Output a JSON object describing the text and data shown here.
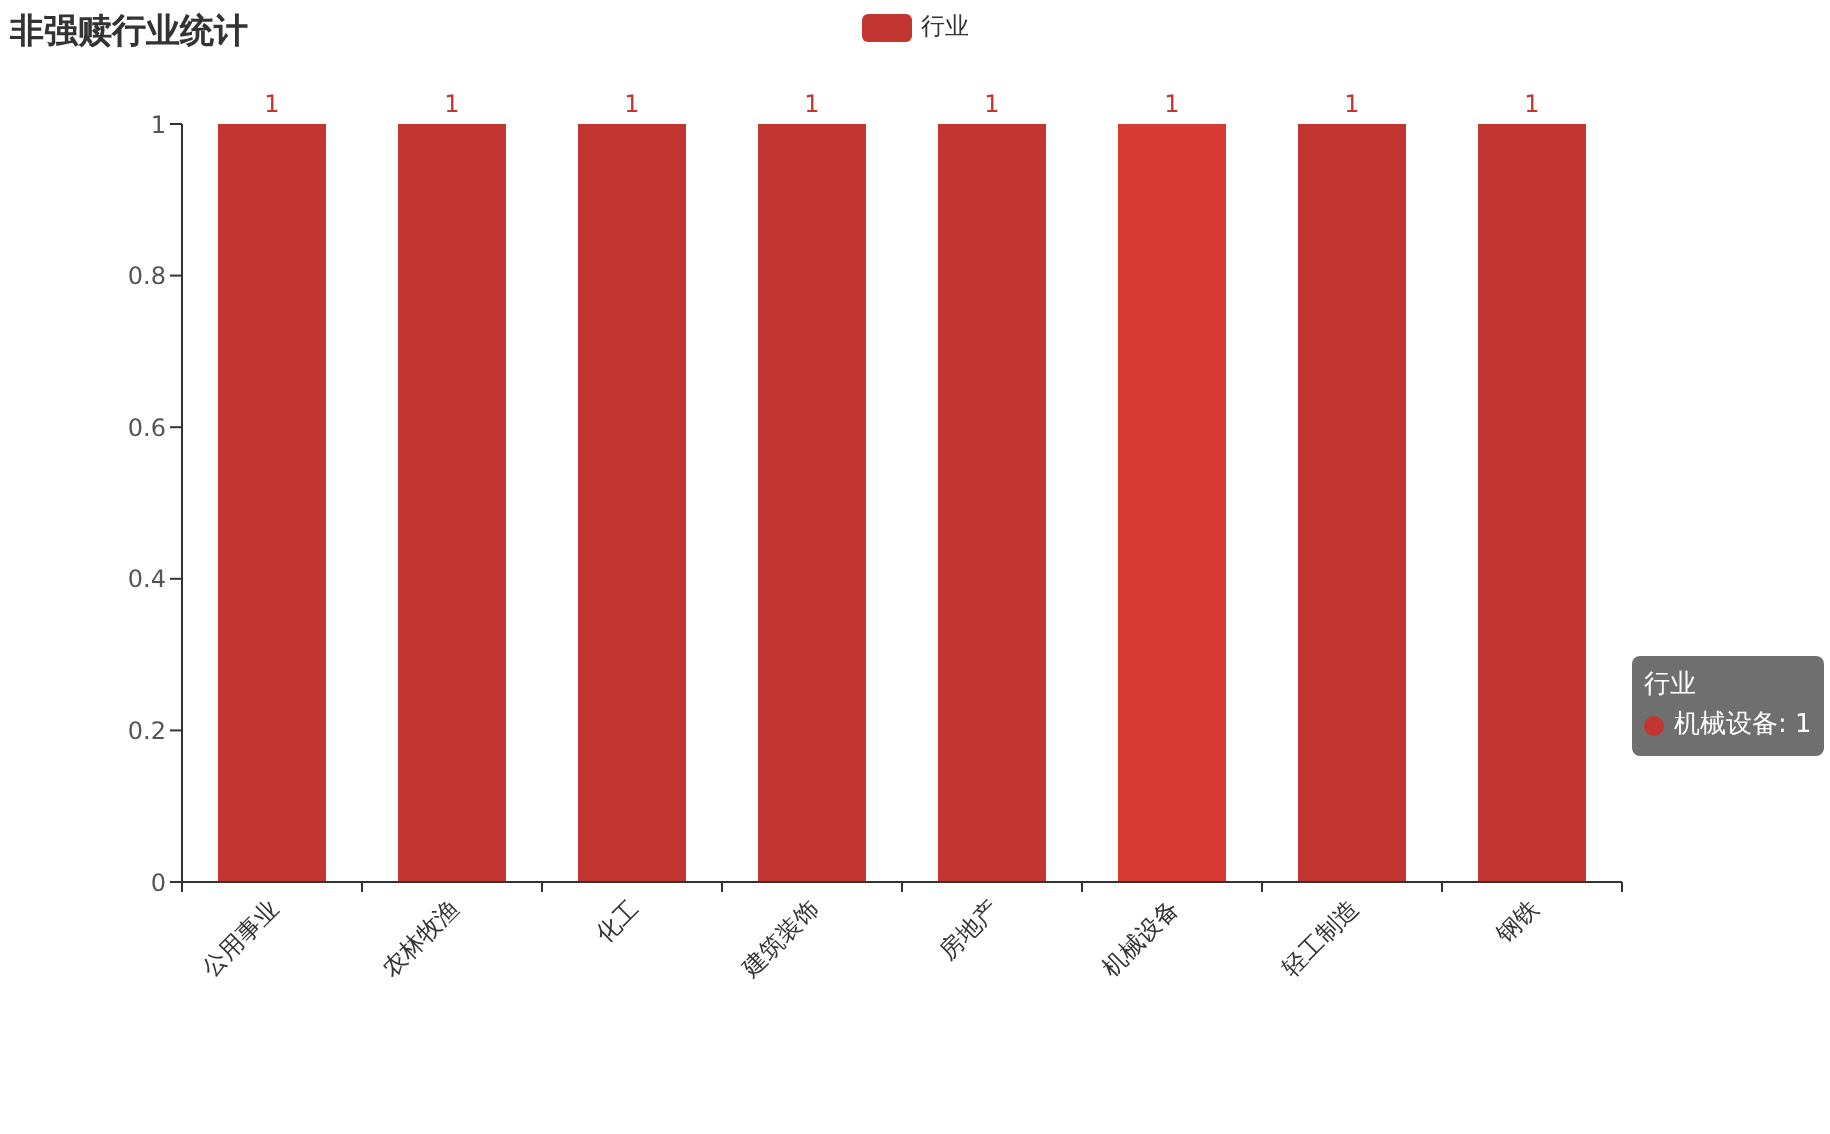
{
  "chart_data": {
    "type": "bar",
    "title": "非强赎行业统计",
    "categories": [
      "公用事业",
      "农林牧渔",
      "化工",
      "建筑装饰",
      "房地产",
      "机械设备",
      "轻工制造",
      "钢铁"
    ],
    "series": [
      {
        "name": "行业",
        "color": "#c23531",
        "colors": [
          "#c23531",
          "#c23531",
          "#c23531",
          "#c23531",
          "#c23531",
          "#d73a33",
          "#c23531",
          "#c23531"
        ],
        "values": [
          1,
          1,
          1,
          1,
          1,
          1,
          1,
          1
        ]
      }
    ],
    "ylim": [
      0,
      1
    ],
    "yticks": [
      0,
      0.2,
      0.4,
      0.6,
      0.8,
      1
    ],
    "data_labels": true,
    "legend": "top",
    "annotations": [
      "行业",
      "机械设备: 1"
    ]
  }
}
